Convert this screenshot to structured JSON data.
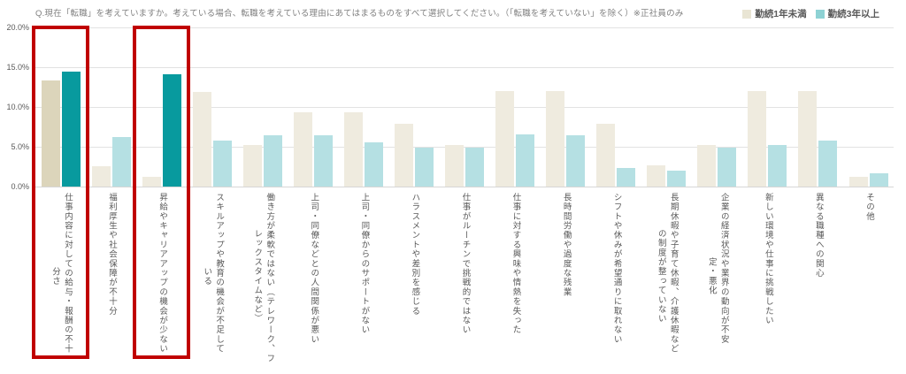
{
  "title": "Q.現在「転職」を考えていますか。考えている場合、転職を考えている理由にあてはまるものをすべて選択してください。（「転職を考えていない」を除く）※正社員のみ",
  "legend": {
    "items": [
      {
        "label": "勤続1年未満"
      },
      {
        "label": "勤続3年以上"
      }
    ]
  },
  "y_axis": {
    "ticks": [
      "20.0%",
      "15.0%",
      "10.0%",
      "5.0%",
      "0.0%"
    ]
  },
  "colors": {
    "series1": "#efebdf",
    "series1_emphasis": "#dcd5bb",
    "series2": "#b5e0e3",
    "series2_emphasis": "#089a9e",
    "legend_series1": "#e9e5d4",
    "legend_series2": "#8ed2d4",
    "highlight_box": "#c00000",
    "gridline": "#e2e2e2",
    "text": "#595959"
  },
  "chart_data": {
    "type": "bar",
    "title": "Q.現在「転職」を考えていますか。考えている場合、転職を考えている理由にあてはまるものをすべて選択してください。（「転職を考えていない」を除く）※正社員のみ",
    "xlabel": "",
    "ylabel": "",
    "ylim": [
      0,
      20
    ],
    "yticks_percent": [
      0,
      5,
      10,
      15,
      20
    ],
    "grid": true,
    "legend_position": "top-right",
    "categories": [
      "仕事内容に対しての給与・報酬の不十分さ",
      "福利厚生や社会保障が不十分",
      "昇給やキャリアアップの機会が少ない",
      "スキルアップや教育の機会が不足している",
      "働き方が柔軟ではない（テレワーク、フレックスタイムなど）",
      "上司・同僚などとの人間関係が悪い",
      "上司・同僚からのサポートがない",
      "ハラスメントや差別を感じる",
      "仕事がルーチンで挑戦的ではない",
      "仕事に対する興味や情熱を失った",
      "長時間労働や過度な残業",
      "シフトや休みが希望通りに取れない",
      "長期休暇や子育て休暇、介護休暇などの制度が整っていない",
      "企業の経済状況や業界の動向が不安定・悪化",
      "新しい環境や仕事に挑戦したい",
      "異なる職種への関心",
      "その他"
    ],
    "series": [
      {
        "name": "勤続1年未満",
        "values": [
          13.3,
          2.6,
          1.2,
          11.9,
          5.2,
          9.3,
          9.3,
          7.9,
          5.2,
          12.0,
          12.0,
          7.9,
          2.7,
          5.2,
          12.0,
          12.0,
          1.2
        ]
      },
      {
        "name": "勤続3年以上",
        "values": [
          14.5,
          6.2,
          14.1,
          5.8,
          6.4,
          6.4,
          5.6,
          4.9,
          4.9,
          6.6,
          6.4,
          2.3,
          2.0,
          4.9,
          5.2,
          5.8,
          1.7
        ]
      }
    ],
    "highlighted_categories": [
      0,
      2
    ],
    "series1_emphasized": [
      0
    ],
    "series2_emphasized": [
      0,
      2
    ]
  },
  "display": {
    "label_columns": [
      [
        "仕事内容に対しての給与・報酬の不十",
        "分さ"
      ],
      [
        "福利厚生や社会保障が不十分"
      ],
      [
        "昇給やキャリアアップの機会が少ない"
      ],
      [
        "スキルアップや教育の機会が不足して",
        "いる"
      ],
      [
        "働き方が柔軟ではない（テレワーク、フ",
        "レックスタイムなど）"
      ],
      [
        "上司・同僚などとの人間関係が悪い"
      ],
      [
        "上司・同僚からのサポートがない"
      ],
      [
        "ハラスメントや差別を感じる"
      ],
      [
        "仕事がルーチンで挑戦的ではない"
      ],
      [
        "仕事に対する興味や情熱を失った"
      ],
      [
        "長時間労働や過度な残業"
      ],
      [
        "シフトや休みが希望通りに取れない"
      ],
      [
        "長期休暇や子育て休暇、介護休暇など",
        "の制度が整っていない"
      ],
      [
        "企業の経済状況や業界の動向が不安",
        "定・悪化"
      ],
      [
        "新しい環境や仕事に挑戦したい"
      ],
      [
        "異なる職種への関心"
      ],
      [
        "その他"
      ]
    ]
  }
}
